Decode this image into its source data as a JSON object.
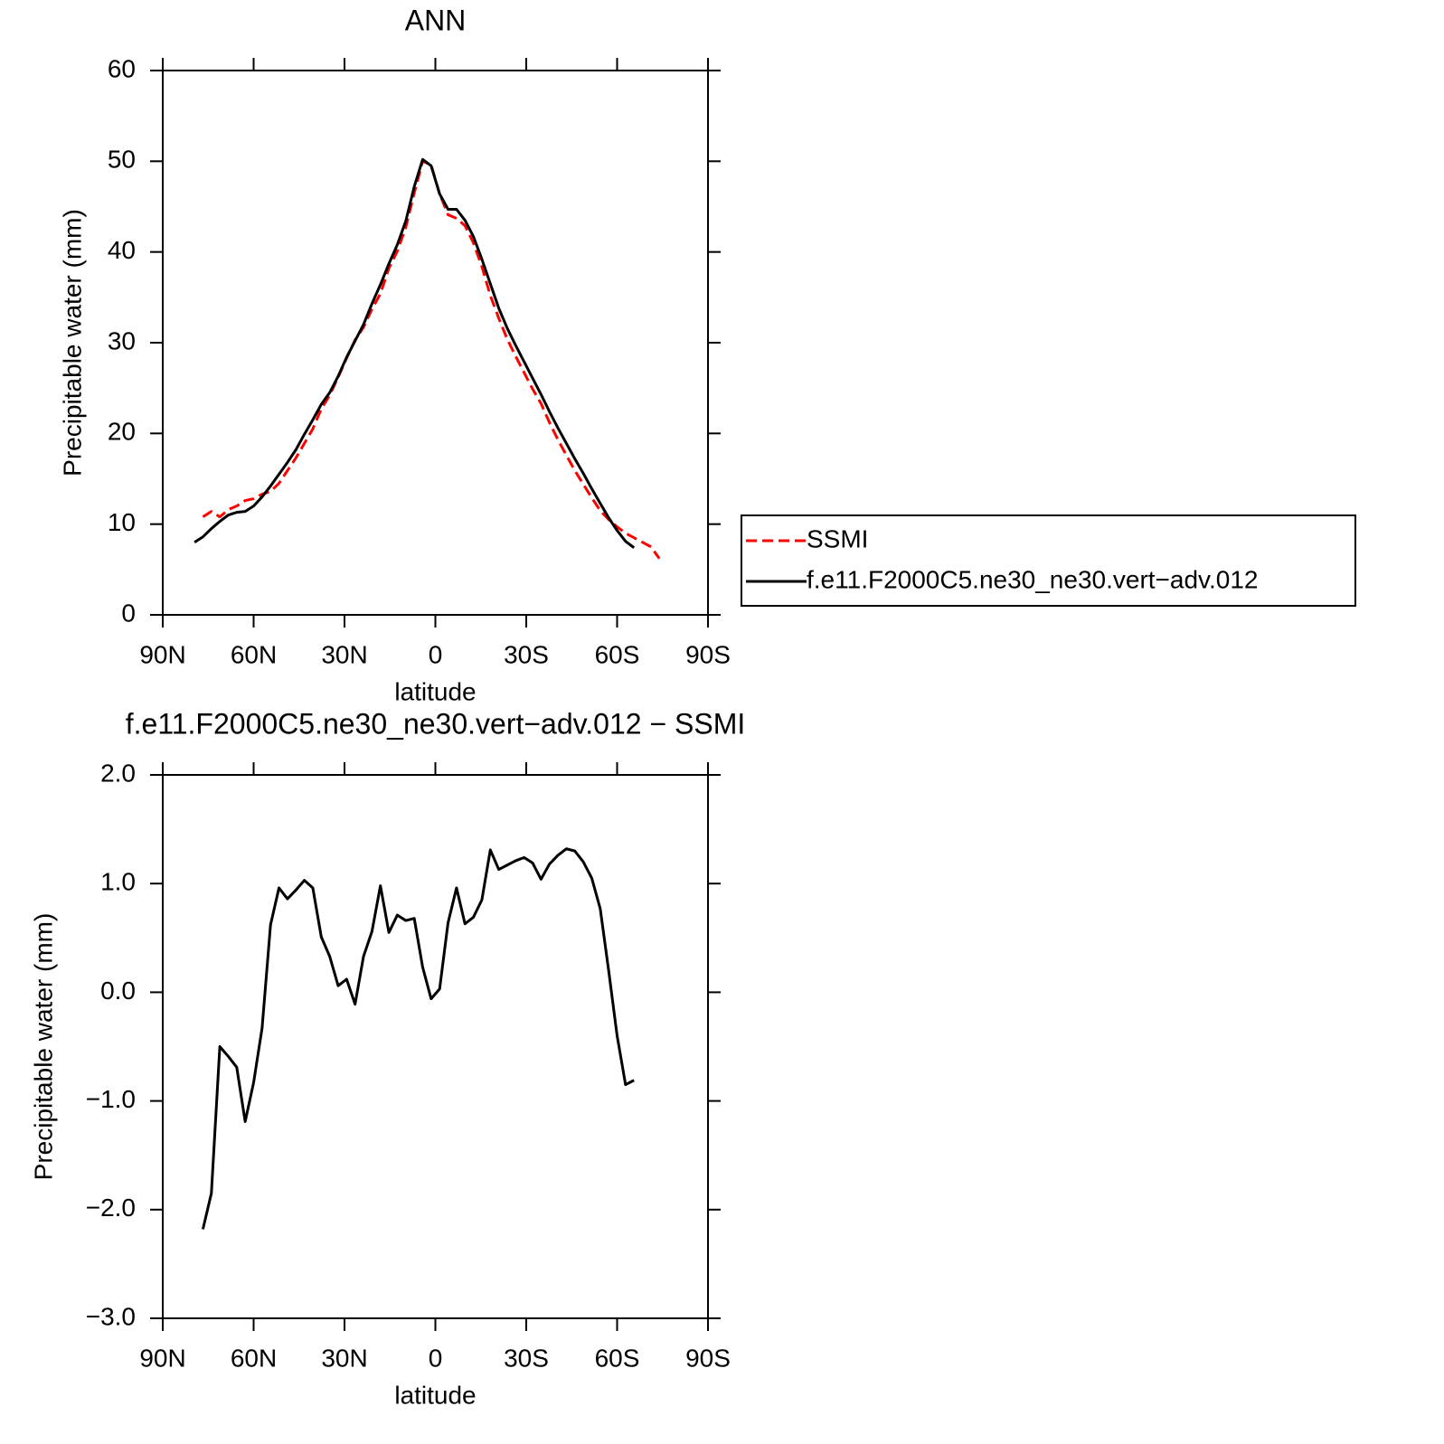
{
  "chart_data": [
    {
      "type": "line",
      "title": "ANN",
      "xlabel": "latitude",
      "ylabel": "Precipitable water (mm)",
      "xlim": [
        90,
        -90
      ],
      "xticks": [
        {
          "value": 90,
          "label": "90N"
        },
        {
          "value": 60,
          "label": "60N"
        },
        {
          "value": 30,
          "label": "30N"
        },
        0,
        {
          "value": -30,
          "label": "30S"
        },
        {
          "value": -60,
          "label": "60S"
        },
        {
          "value": -90,
          "label": "90S"
        }
      ],
      "ylim": [
        0,
        60
      ],
      "yticks": [
        0,
        10,
        20,
        30,
        40,
        50,
        60
      ],
      "legend": "right",
      "series": [
        {
          "name": "SSMI",
          "color": "#ff0000",
          "linestyle": "dashed",
          "x": [
            76.74,
            73.95,
            71.16,
            68.37,
            65.58,
            62.79,
            60.0,
            57.21,
            54.42,
            51.63,
            48.84,
            46.04,
            43.25,
            40.46,
            37.67,
            34.88,
            32.09,
            29.3,
            26.51,
            23.72,
            20.93,
            18.14,
            15.35,
            12.56,
            9.77,
            6.98,
            4.19,
            1.4,
            -1.4,
            -4.19,
            -6.98,
            -9.77,
            -12.56,
            -15.35,
            -18.14,
            -20.93,
            -23.72,
            -26.51,
            -29.3,
            -32.09,
            -34.88,
            -37.67,
            -40.46,
            -43.25,
            -46.04,
            -48.84,
            -51.63,
            -54.42,
            -57.21,
            -60.0,
            -62.79,
            -65.58,
            -68.37,
            -71.16,
            -73.95
          ],
          "values": [
            10.8,
            11.4,
            10.8,
            11.6,
            12.0,
            12.6,
            12.8,
            13.3,
            13.6,
            14.5,
            15.9,
            17.3,
            18.9,
            20.5,
            22.7,
            24.2,
            26.2,
            28.3,
            30.3,
            31.7,
            33.7,
            35.4,
            38.2,
            40.1,
            42.7,
            46.5,
            50.0,
            49.6,
            46.4,
            44.1,
            43.7,
            42.9,
            41.0,
            38.4,
            35.2,
            32.7,
            30.4,
            28.5,
            26.7,
            24.9,
            23.3,
            21.2,
            19.3,
            17.6,
            15.9,
            14.4,
            12.9,
            11.5,
            10.5,
            9.7,
            9.0,
            8.5,
            8.0,
            7.5,
            6.2
          ]
        },
        {
          "name": "f.e11.F2000C5.ne30_ne30.vert−adv.012",
          "color": "#000000",
          "linestyle": "solid",
          "x": [
            79.53,
            76.74,
            73.95,
            71.16,
            68.37,
            65.58,
            62.79,
            60.0,
            57.21,
            54.42,
            51.63,
            48.84,
            46.04,
            43.25,
            40.46,
            37.67,
            34.88,
            32.09,
            29.3,
            26.51,
            23.72,
            20.93,
            18.14,
            15.35,
            12.56,
            9.77,
            6.98,
            4.19,
            1.4,
            -1.4,
            -4.19,
            -6.98,
            -9.77,
            -12.56,
            -15.35,
            -18.14,
            -20.93,
            -23.72,
            -26.51,
            -29.3,
            -32.09,
            -34.88,
            -37.67,
            -40.46,
            -43.25,
            -46.04,
            -48.84,
            -51.63,
            -54.42,
            -57.21,
            -60.0,
            -62.79,
            -65.58
          ],
          "values": [
            8.0,
            8.6,
            9.5,
            10.3,
            11.0,
            11.3,
            11.4,
            12.0,
            13.0,
            14.2,
            15.5,
            16.8,
            18.2,
            19.9,
            21.5,
            23.2,
            24.5,
            26.3,
            28.4,
            30.2,
            32.0,
            34.3,
            36.4,
            38.7,
            40.8,
            43.4,
            47.2,
            50.2,
            49.5,
            46.4,
            44.7,
            44.7,
            43.5,
            41.7,
            39.2,
            36.5,
            33.8,
            31.6,
            29.7,
            27.9,
            26.1,
            24.3,
            22.4,
            20.6,
            18.9,
            17.2,
            15.6,
            13.9,
            12.3,
            10.7,
            9.3,
            8.1,
            7.4
          ]
        }
      ]
    },
    {
      "type": "line",
      "title": "f.e11.F2000C5.ne30_ne30.vert−adv.012  −  SSMI",
      "xlabel": "latitude",
      "ylabel": "Precipitable water (mm)",
      "xlim": [
        90,
        -90
      ],
      "xticks": [
        {
          "value": 90,
          "label": "90N"
        },
        {
          "value": 60,
          "label": "60N"
        },
        {
          "value": 30,
          "label": "30N"
        },
        0,
        {
          "value": -30,
          "label": "30S"
        },
        {
          "value": -60,
          "label": "60S"
        },
        {
          "value": -90,
          "label": "90S"
        }
      ],
      "ylim": [
        -3,
        2
      ],
      "yticks": [
        {
          "value": -3,
          "label": "−3.0"
        },
        {
          "value": -2,
          "label": "−2.0"
        },
        {
          "value": -1,
          "label": "−1.0"
        },
        {
          "value": 0,
          "label": "0.0"
        },
        {
          "value": 1,
          "label": "1.0"
        },
        {
          "value": 2,
          "label": "2.0"
        }
      ],
      "series": [
        {
          "color": "#000000",
          "linestyle": "solid",
          "x": [
            76.74,
            73.95,
            71.16,
            68.37,
            65.58,
            62.79,
            60.0,
            57.21,
            54.42,
            51.63,
            48.84,
            46.04,
            43.25,
            40.46,
            37.67,
            34.88,
            32.09,
            29.3,
            26.51,
            23.72,
            20.93,
            18.14,
            15.35,
            12.56,
            9.77,
            6.98,
            4.19,
            1.4,
            -1.4,
            -4.19,
            -6.98,
            -9.77,
            -12.56,
            -15.35,
            -18.14,
            -20.93,
            -23.72,
            -26.51,
            -29.3,
            -32.09,
            -34.88,
            -37.67,
            -40.46,
            -43.25,
            -46.04,
            -48.84,
            -51.63,
            -54.42,
            -57.21,
            -60.0,
            -62.79,
            -65.58
          ],
          "values": [
            -2.18,
            -1.85,
            -0.5,
            -0.59,
            -0.69,
            -1.19,
            -0.83,
            -0.33,
            0.62,
            0.96,
            0.86,
            0.94,
            1.03,
            0.96,
            0.51,
            0.33,
            0.06,
            0.12,
            -0.11,
            0.33,
            0.56,
            0.98,
            0.55,
            0.71,
            0.66,
            0.68,
            0.23,
            -0.06,
            0.03,
            0.64,
            0.96,
            0.63,
            0.69,
            0.85,
            1.31,
            1.13,
            1.17,
            1.21,
            1.24,
            1.19,
            1.04,
            1.18,
            1.26,
            1.32,
            1.3,
            1.2,
            1.05,
            0.77,
            0.2,
            -0.4,
            -0.85,
            -0.81
          ]
        }
      ]
    }
  ]
}
